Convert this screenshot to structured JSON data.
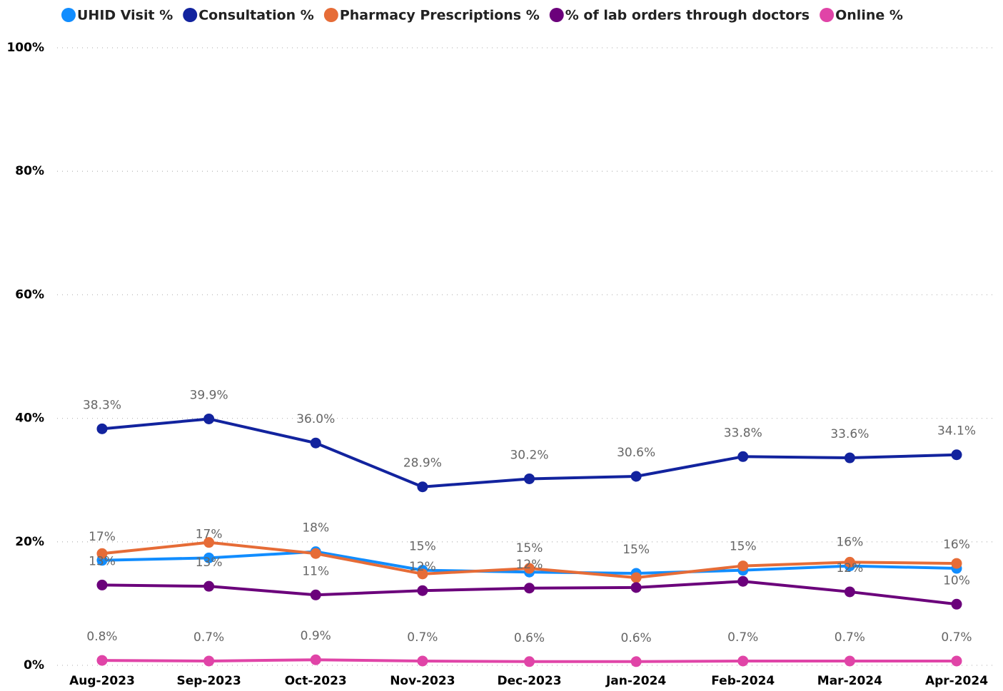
{
  "chart_data": {
    "type": "line",
    "categories": [
      "Aug-2023",
      "Sep-2023",
      "Oct-2023",
      "Nov-2023",
      "Dec-2023",
      "Jan-2024",
      "Feb-2024",
      "Mar-2024",
      "Apr-2024"
    ],
    "ylim": [
      0,
      100
    ],
    "yticks": [
      {
        "value": 0,
        "label": "0%"
      },
      {
        "value": 20,
        "label": "20%"
      },
      {
        "value": 40,
        "label": "40%"
      },
      {
        "value": 60,
        "label": "60%"
      },
      {
        "value": 80,
        "label": "80%"
      },
      {
        "value": 100,
        "label": "100%"
      }
    ],
    "grid": true,
    "legend": "top-left",
    "series": [
      {
        "name": "UHID Visit %",
        "color": "#118DFF",
        "values": [
          17.0,
          17.4,
          18.4,
          15.4,
          15.1,
          14.9,
          15.4,
          16.1,
          15.7
        ],
        "value_labels": [
          "17%",
          "17%",
          "18%",
          "15%",
          "15%",
          "15%",
          "15%",
          "16%",
          "16%"
        ]
      },
      {
        "name": "Consultation %",
        "color": "#12239E",
        "values": [
          38.3,
          39.9,
          36.0,
          28.9,
          30.2,
          30.6,
          33.8,
          33.6,
          34.1
        ],
        "value_labels": [
          "38.3%",
          "39.9%",
          "36.0%",
          "28.9%",
          "30.2%",
          "30.6%",
          "33.8%",
          "33.6%",
          "34.1%"
        ]
      },
      {
        "name": "Pharmacy Prescriptions %",
        "color": "#E66C37",
        "values": [
          18.1,
          19.9,
          18.1,
          14.8,
          15.7,
          14.2,
          16.1,
          16.7,
          16.5
        ]
      },
      {
        "name": "% of lab orders through doctors",
        "color": "#6B007B",
        "values": [
          13.0,
          12.8,
          11.4,
          12.1,
          12.5,
          12.6,
          13.6,
          11.9,
          9.9
        ],
        "value_labels": [
          "13%",
          "13%",
          "11%",
          "12%",
          "12%",
          null,
          null,
          "12%",
          "10%"
        ]
      },
      {
        "name": "Online %",
        "color": "#E044A7",
        "values": [
          0.8,
          0.7,
          0.9,
          0.7,
          0.6,
          0.6,
          0.7,
          0.7,
          0.7
        ],
        "value_labels": [
          "0.8%",
          "0.7%",
          "0.9%",
          "0.7%",
          "0.6%",
          "0.6%",
          "0.7%",
          "0.7%",
          "0.7%"
        ]
      }
    ]
  }
}
